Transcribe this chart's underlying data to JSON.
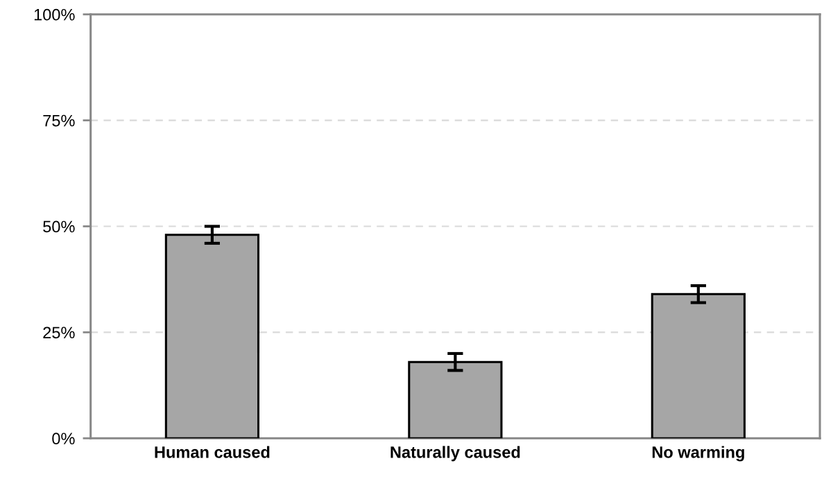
{
  "chart_data": {
    "type": "bar",
    "categories": [
      "Human caused",
      "Naturally caused",
      "No warming"
    ],
    "values": [
      48,
      18,
      34
    ],
    "errors": [
      2,
      2,
      2
    ],
    "color": "#a6a6a6",
    "ylim": [
      0,
      100
    ],
    "yticks": [
      {
        "value": 0,
        "label": "0%"
      },
      {
        "value": 25,
        "label": "25%"
      },
      {
        "value": 50,
        "label": "50%"
      },
      {
        "value": 75,
        "label": "75%"
      },
      {
        "value": 100,
        "label": "100%"
      }
    ],
    "grid": "y"
  }
}
